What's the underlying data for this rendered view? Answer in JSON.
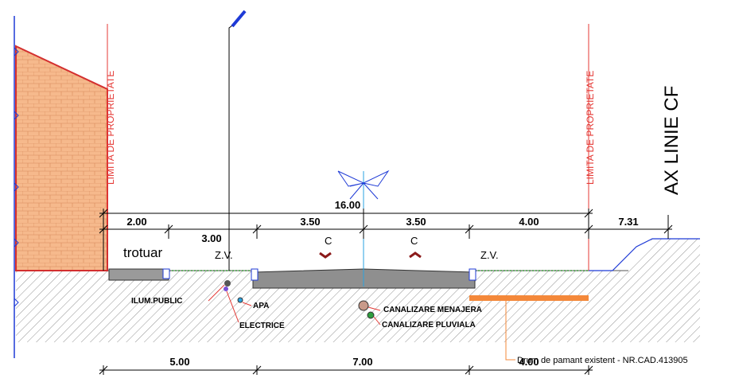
{
  "property_limits": [
    "LIMITA DE PROPRIETATE",
    "LIMITA DE PROPRIETATE"
  ],
  "axis_label": "AX LINIE CF",
  "dimensions_top": {
    "total": "16.00",
    "segments": [
      "2.00",
      "3.00",
      "3.50",
      "3.50",
      "4.00",
      "7.31"
    ]
  },
  "dimensions_bottom": [
    "5.00",
    "7.00",
    "4.00"
  ],
  "zones": {
    "sidewalk": "trotuar",
    "green_left": "Z.V.",
    "green_right": "Z.V.",
    "lane_left": "C",
    "lane_right": "C"
  },
  "utilities": [
    "ILUM.PUBLIC",
    "APA",
    "ELECTRICE",
    "CANALIZARE MENAJERA",
    "CANALIZARE PLUVIALA"
  ],
  "note": "Drum de pamant existent - NR.CAD.413905"
}
